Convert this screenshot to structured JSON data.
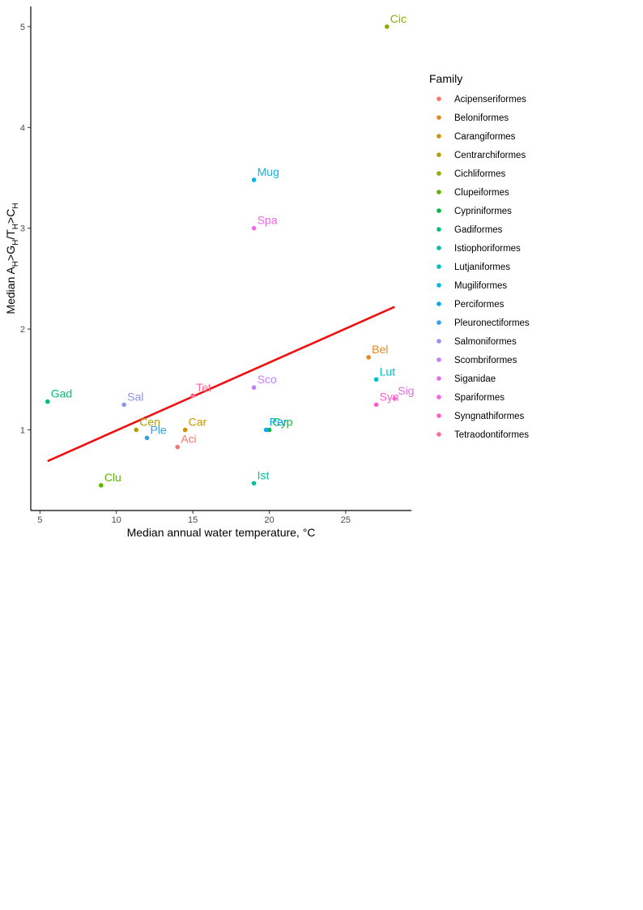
{
  "chart_data": {
    "type": "scatter",
    "xlabel": "Median annual water temperature, °C",
    "ylabel": {
      "base": "Median A",
      "parts": [
        {
          "t": "H",
          "sub": true
        },
        {
          "t": ">G",
          "sub": false
        },
        {
          "t": "H",
          "sub": true
        },
        {
          "t": "/T",
          "sub": false
        },
        {
          "t": "H",
          "sub": true
        },
        {
          "t": ">C",
          "sub": false
        },
        {
          "t": "H",
          "sub": true
        }
      ]
    },
    "xlim": [
      4.4,
      29.3
    ],
    "ylim": [
      0.2,
      5.2
    ],
    "x_ticks": [
      "5",
      "10",
      "15",
      "20",
      "25"
    ],
    "y_ticks": [
      "1",
      "2",
      "3",
      "4",
      "5"
    ],
    "grid": false,
    "legend": {
      "title": "Family",
      "placement": "right",
      "entries": [
        {
          "name": "Acipenseriformes",
          "color": "#F8766D"
        },
        {
          "name": "Beloniformes",
          "color": "#E6861E"
        },
        {
          "name": "Carangiformes",
          "color": "#D09400"
        },
        {
          "name": "Centrarchiformes",
          "color": "#B4A000"
        },
        {
          "name": "Cichliformes",
          "color": "#93AA00"
        },
        {
          "name": "Clupeiformes",
          "color": "#5EB300"
        },
        {
          "name": "Cypriniformes",
          "color": "#00BA38"
        },
        {
          "name": "Gadiformes",
          "color": "#00BF74"
        },
        {
          "name": "Istiophoriformes",
          "color": "#00C19F"
        },
        {
          "name": "Lutjaniformes",
          "color": "#00BFC4"
        },
        {
          "name": "Mugiliformes",
          "color": "#00B8E5"
        },
        {
          "name": "Perciformes",
          "color": "#00A9FF"
        },
        {
          "name": "Pleuronectiformes",
          "color": "#2E9DEB"
        },
        {
          "name": "Salmoniformes",
          "color": "#8F91F3"
        },
        {
          "name": "Scombriformes",
          "color": "#C77CFF"
        },
        {
          "name": "Siganidae",
          "color": "#E46EE8"
        },
        {
          "name": "Spariformes",
          "color": "#F564E3"
        },
        {
          "name": "Syngnathiformes",
          "color": "#FF5FC4"
        },
        {
          "name": "Tetraodontiformes",
          "color": "#FF6C91"
        }
      ]
    },
    "points": [
      {
        "label": "Aci",
        "family": "Acipenseriformes",
        "x": 14.0,
        "y": 0.83
      },
      {
        "label": "Bel",
        "family": "Beloniformes",
        "x": 26.5,
        "y": 1.72
      },
      {
        "label": "Car",
        "family": "Carangiformes",
        "x": 14.5,
        "y": 1.0
      },
      {
        "label": "Cen",
        "family": "Centrarchiformes",
        "x": 11.3,
        "y": 1.0
      },
      {
        "label": "Cic",
        "family": "Cichliformes",
        "x": 27.7,
        "y": 5.0
      },
      {
        "label": "Clu",
        "family": "Clupeiformes",
        "x": 9.0,
        "y": 0.45
      },
      {
        "label": "Cyp",
        "family": "Cypriniformes",
        "x": 20.0,
        "y": 1.0
      },
      {
        "label": "Gad",
        "family": "Gadiformes",
        "x": 5.5,
        "y": 1.28
      },
      {
        "label": "Ist",
        "family": "Istiophoriformes",
        "x": 19.0,
        "y": 0.47
      },
      {
        "label": "Lut",
        "family": "Lutjaniformes",
        "x": 27.0,
        "y": 1.5
      },
      {
        "label": "Mug",
        "family": "Mugiliformes",
        "x": 19.0,
        "y": 3.48
      },
      {
        "label": "Per",
        "family": "Perciformes",
        "x": 19.8,
        "y": 1.0
      },
      {
        "label": "Ple",
        "family": "Pleuronectiformes",
        "x": 12.0,
        "y": 0.92
      },
      {
        "label": "Sal",
        "family": "Salmoniformes",
        "x": 10.5,
        "y": 1.25
      },
      {
        "label": "Sco",
        "family": "Scombriformes",
        "x": 19.0,
        "y": 1.42
      },
      {
        "label": "Sig",
        "family": "Siganidae",
        "x": 28.2,
        "y": 1.31
      },
      {
        "label": "Spa",
        "family": "Spariformes",
        "x": 19.0,
        "y": 3.0
      },
      {
        "label": "Syn",
        "family": "Syngnathiformes",
        "x": 27.0,
        "y": 1.25
      },
      {
        "label": "Tet",
        "family": "Tetraodontiformes",
        "x": 15.0,
        "y": 1.34
      }
    ],
    "trend_line": {
      "color": "#EE1111",
      "x": [
        5.5,
        28.2
      ],
      "y": [
        0.69,
        2.22
      ]
    }
  }
}
